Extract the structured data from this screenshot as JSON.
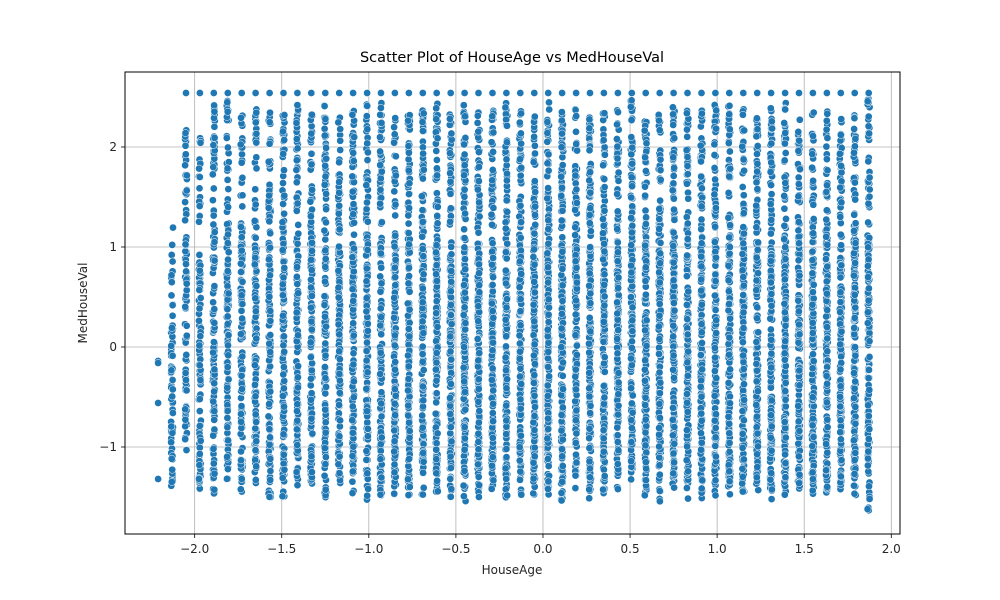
{
  "chart_data": {
    "type": "scatter",
    "title": "Scatter Plot of HouseAge vs MedHouseVal",
    "xlabel": "HouseAge",
    "ylabel": "MedHouseVal",
    "xlim": [
      -2.4,
      2.05
    ],
    "ylim": [
      -1.87,
      2.75
    ],
    "xticks": [
      -2.0,
      -1.5,
      -1.0,
      -0.5,
      0.0,
      0.5,
      1.0,
      1.5,
      2.0
    ],
    "xtick_labels": [
      "−2.0",
      "−1.5",
      "−1.0",
      "−0.5",
      "0.0",
      "0.5",
      "1.0",
      "1.5",
      "2.0"
    ],
    "yticks": [
      -1,
      0,
      1,
      2
    ],
    "ytick_labels": [
      "−1",
      "0",
      "1",
      "2"
    ],
    "grid": true,
    "marker_color": "#1f77b4",
    "marker_edge_color": "#ffffff",
    "x_levels": [
      -2.21,
      -2.13,
      -2.05,
      -1.97,
      -1.89,
      -1.81,
      -1.73,
      -1.65,
      -1.57,
      -1.49,
      -1.41,
      -1.33,
      -1.25,
      -1.17,
      -1.09,
      -1.01,
      -0.93,
      -0.85,
      -0.77,
      -0.69,
      -0.61,
      -0.53,
      -0.45,
      -0.37,
      -0.29,
      -0.21,
      -0.13,
      -0.05,
      0.03,
      0.11,
      0.19,
      0.27,
      0.35,
      0.43,
      0.51,
      0.59,
      0.67,
      0.75,
      0.83,
      0.91,
      0.99,
      1.07,
      1.15,
      1.23,
      1.31,
      1.39,
      1.47,
      1.55,
      1.63,
      1.71,
      1.79,
      1.87
    ],
    "y_range": [
      -1.66,
      2.54
    ],
    "note_ceiling_value": 2.54
  }
}
